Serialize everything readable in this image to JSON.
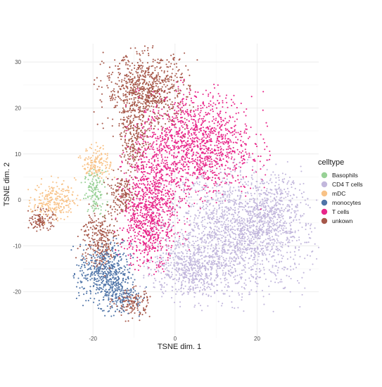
{
  "chart_data": {
    "type": "scatter",
    "title": "",
    "xlabel": "TSNE dim. 1",
    "ylabel": "TSNE dim. 2",
    "xlim": [
      -37,
      35
    ],
    "ylim": [
      -30,
      34
    ],
    "x_ticks": [
      -20,
      0,
      20
    ],
    "y_ticks": [
      -20,
      -10,
      0,
      10,
      20,
      30
    ],
    "grid": true,
    "legend": {
      "title": "celltype",
      "placement": "right",
      "entries": [
        "Basophils",
        "CD4 T cells",
        "mDC",
        "monocytes",
        "T cells",
        "unkown"
      ]
    },
    "series": [
      {
        "name": "Basophils",
        "color": "#98d196",
        "clusters": [
          {
            "center": [
              -19.5,
              1.5
            ],
            "spread": [
              1.3,
              2.4
            ],
            "n": 130
          }
        ]
      },
      {
        "name": "CD4 T cells",
        "color": "#c2b7dc",
        "clusters": [
          {
            "center": [
              15.0,
              -7.5
            ],
            "spread": [
              8.5,
              6.5
            ],
            "n": 1700
          },
          {
            "center": [
              3.0,
              -15.0
            ],
            "spread": [
              4.5,
              3.0
            ],
            "n": 450
          },
          {
            "center": [
              23.0,
              -3.0
            ],
            "spread": [
              4.0,
              4.0
            ],
            "n": 350
          }
        ]
      },
      {
        "name": "mDC",
        "color": "#f8c287",
        "clusters": [
          {
            "center": [
              -29.5,
              0.0
            ],
            "spread": [
              2.6,
              2.0
            ],
            "n": 220
          },
          {
            "center": [
              -19.0,
              8.0
            ],
            "spread": [
              1.8,
              1.8
            ],
            "n": 150
          }
        ]
      },
      {
        "name": "monocytes",
        "color": "#4f74a8",
        "clusters": [
          {
            "center": [
              -17.0,
              -16.0
            ],
            "spread": [
              3.2,
              3.2
            ],
            "n": 500
          },
          {
            "center": [
              -13.0,
              -21.0
            ],
            "spread": [
              2.5,
              2.0
            ],
            "n": 150
          }
        ]
      },
      {
        "name": "T cells",
        "color": "#e8268a",
        "clusters": [
          {
            "center": [
              5.0,
              12.0
            ],
            "spread": [
              7.0,
              5.5
            ],
            "n": 1300
          },
          {
            "center": [
              -5.5,
              0.0
            ],
            "spread": [
              3.5,
              6.0
            ],
            "n": 700
          },
          {
            "center": [
              -7.5,
              -8.0
            ],
            "spread": [
              3.0,
              3.5
            ],
            "n": 250
          }
        ]
      },
      {
        "name": "unkown",
        "color": "#a6584a",
        "clusters": [
          {
            "center": [
              -7.0,
              23.5
            ],
            "spread": [
              5.0,
              4.0
            ],
            "n": 850
          },
          {
            "center": [
              -10.0,
              13.0
            ],
            "spread": [
              1.6,
              3.0
            ],
            "n": 180
          },
          {
            "center": [
              -13.0,
              1.0
            ],
            "spread": [
              1.8,
              2.2
            ],
            "n": 160
          },
          {
            "center": [
              -18.5,
              -8.5
            ],
            "spread": [
              2.2,
              3.2
            ],
            "n": 260
          },
          {
            "center": [
              -32.5,
              -4.5
            ],
            "spread": [
              1.4,
              1.1
            ],
            "n": 110
          },
          {
            "center": [
              -10.5,
              -22.5
            ],
            "spread": [
              2.2,
              1.6
            ],
            "n": 130
          }
        ]
      }
    ]
  }
}
